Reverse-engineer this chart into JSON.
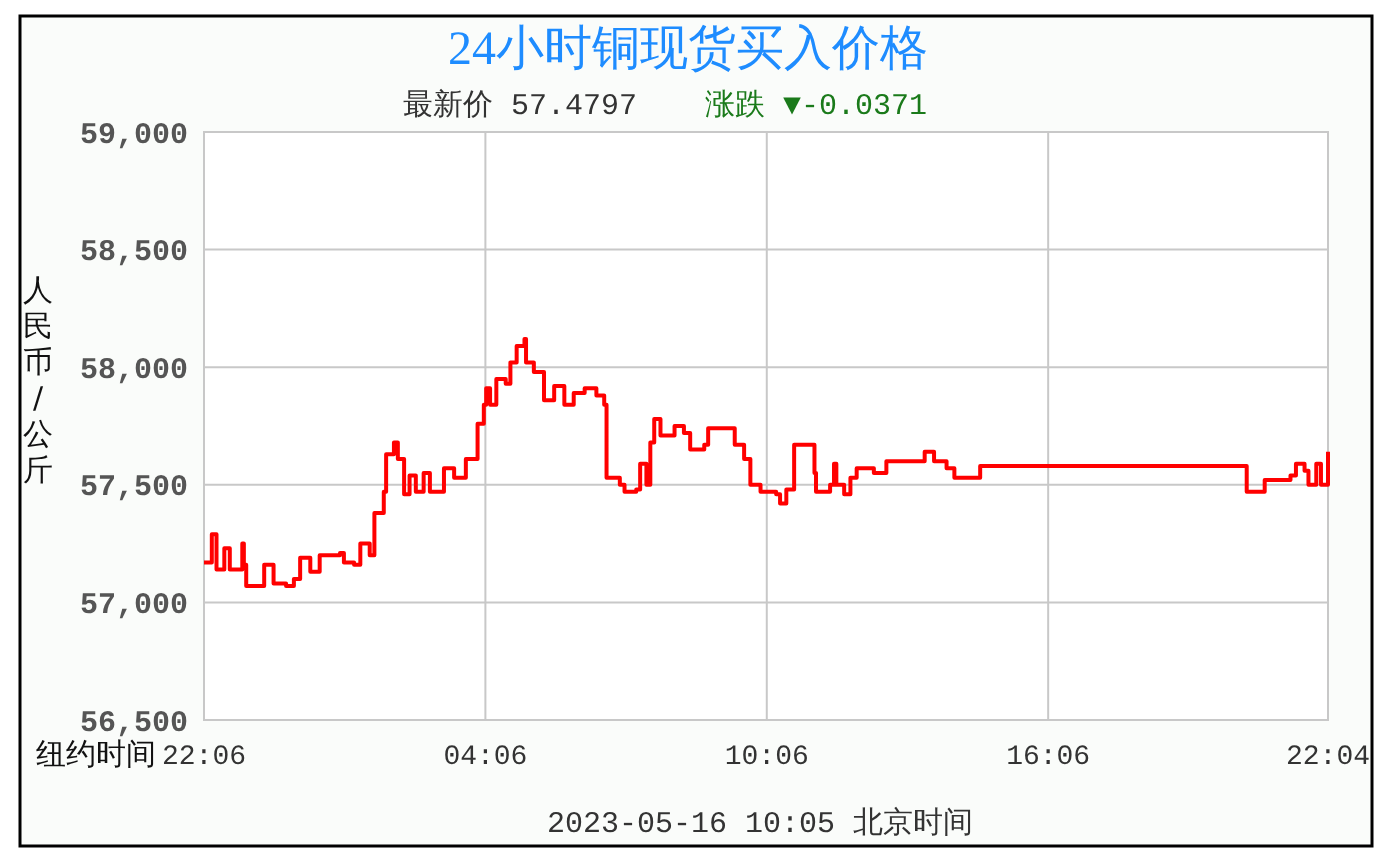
{
  "chart_data": {
    "type": "step",
    "title": "24小时铜现货买入价格",
    "ylabel": "人民币/公斤",
    "xlabel": "纽约时间",
    "annotations": [
      "最新价 57.4797",
      "涨跌 ▼-0.0371",
      "2023-05-16 10:05 北京时间"
    ],
    "xlim": [
      "2023-05-14T22:06",
      "2023-05-15T22:04"
    ],
    "xticks": [
      {
        "value": "2023-05-14T22:06",
        "label": "22:06"
      },
      {
        "value": "2023-05-15T04:06",
        "label": "04:06"
      },
      {
        "value": "2023-05-15T10:06",
        "label": "10:06"
      },
      {
        "value": "2023-05-15T16:06",
        "label": "16:06"
      },
      {
        "value": "2023-05-15T22:04",
        "label": "22:04"
      }
    ],
    "ylim": [
      56500,
      59000
    ],
    "yticks": [
      {
        "value": 56500,
        "label": "56,500"
      },
      {
        "value": 57000,
        "label": "57,000"
      },
      {
        "value": 57500,
        "label": "57,500"
      },
      {
        "value": 58000,
        "label": "58,000"
      },
      {
        "value": 58500,
        "label": "58,500"
      },
      {
        "value": 59000,
        "label": "59,000"
      }
    ],
    "grid": true,
    "series": [
      {
        "color": "#ff0000",
        "x": [
          "2023-05-14T22:06",
          "2023-05-14T22:16",
          "2023-05-14T22:22",
          "2023-05-14T22:32",
          "2023-05-14T22:39",
          "2023-05-14T22:55",
          "2023-05-14T22:57",
          "2023-05-14T23:00",
          "2023-05-14T23:17",
          "2023-05-14T23:23",
          "2023-05-14T23:35",
          "2023-05-14T23:51",
          "2023-05-15T00:01",
          "2023-05-15T00:09",
          "2023-05-15T00:22",
          "2023-05-15T00:34",
          "2023-05-15T01:00",
          "2023-05-15T01:05",
          "2023-05-15T01:18",
          "2023-05-15T01:26",
          "2023-05-15T01:38",
          "2023-05-15T01:44",
          "2023-05-15T01:51",
          "2023-05-15T01:56",
          "2023-05-15T01:59",
          "2023-05-15T02:09",
          "2023-05-15T02:14",
          "2023-05-15T02:22",
          "2023-05-15T02:29",
          "2023-05-15T02:37",
          "2023-05-15T02:47",
          "2023-05-15T02:55",
          "2023-05-15T03:13",
          "2023-05-15T03:26",
          "2023-05-15T03:41",
          "2023-05-15T03:54",
          "2023-05-15T03:56",
          "2023-05-15T04:04",
          "2023-05-15T04:07",
          "2023-05-15T04:12",
          "2023-05-15T04:20",
          "2023-05-15T04:32",
          "2023-05-15T04:38",
          "2023-05-15T04:46",
          "2023-05-15T04:56",
          "2023-05-15T04:58",
          "2023-05-15T05:08",
          "2023-05-15T05:21",
          "2023-05-15T05:34",
          "2023-05-15T05:47",
          "2023-05-15T05:59",
          "2023-05-15T06:13",
          "2023-05-15T06:28",
          "2023-05-15T06:38",
          "2023-05-15T06:41",
          "2023-05-15T06:58",
          "2023-05-15T07:04",
          "2023-05-15T07:19",
          "2023-05-15T07:24",
          "2023-05-15T07:32",
          "2023-05-15T07:37",
          "2023-05-15T07:42",
          "2023-05-15T07:50",
          "2023-05-15T08:08",
          "2023-05-15T08:20",
          "2023-05-15T08:28",
          "2023-05-15T08:46",
          "2023-05-15T08:51",
          "2023-05-15T09:19",
          "2023-05-15T09:25",
          "2023-05-15T09:37",
          "2023-05-15T09:45",
          "2023-05-15T09:58",
          "2023-05-15T10:18",
          "2023-05-15T10:23",
          "2023-05-15T10:31",
          "2023-05-15T10:41",
          "2023-05-15T10:56",
          "2023-05-15T11:07",
          "2023-05-15T11:09",
          "2023-05-15T11:27",
          "2023-05-15T11:32",
          "2023-05-15T11:35",
          "2023-05-15T11:45",
          "2023-05-15T11:53",
          "2023-05-15T12:01",
          "2023-05-15T12:23",
          "2023-05-15T12:39",
          "2023-05-15T13:17",
          "2023-05-15T13:28",
          "2023-05-15T13:40",
          "2023-05-15T13:56",
          "2023-05-15T14:06",
          "2023-05-15T14:39",
          "2023-05-15T20:20",
          "2023-05-15T20:40",
          "2023-05-15T20:43",
          "2023-05-15T21:16",
          "2023-05-15T21:23",
          "2023-05-15T21:34",
          "2023-05-15T21:39",
          "2023-05-15T21:49",
          "2023-05-15T21:55",
          "2023-05-15T22:02",
          "2023-05-15T22:04"
        ],
        "values": [
          57170,
          57290,
          57140,
          57230,
          57140,
          57250,
          57160,
          57070,
          57070,
          57160,
          57080,
          57070,
          57100,
          57190,
          57130,
          57200,
          57210,
          57170,
          57160,
          57250,
          57200,
          57380,
          57380,
          57470,
          57630,
          57680,
          57610,
          57460,
          57540,
          57470,
          57550,
          57470,
          57570,
          57530,
          57610,
          57610,
          57760,
          57840,
          57910,
          57840,
          57950,
          57930,
          58020,
          58090,
          58120,
          58020,
          57980,
          57860,
          57920,
          57840,
          57890,
          57910,
          57880,
          57840,
          57530,
          57500,
          57470,
          57480,
          57590,
          57500,
          57680,
          57780,
          57710,
          57750,
          57720,
          57650,
          57670,
          57740,
          57740,
          57670,
          57610,
          57500,
          57470,
          57460,
          57420,
          57480,
          57670,
          57670,
          57550,
          57470,
          57500,
          57590,
          57500,
          57460,
          57530,
          57570,
          57550,
          57600,
          57600,
          57640,
          57600,
          57570,
          57530,
          57580,
          57470,
          57470,
          57520,
          57540,
          57590,
          57560,
          57500,
          57590,
          57500,
          57500,
          57640
        ]
      }
    ]
  }
}
